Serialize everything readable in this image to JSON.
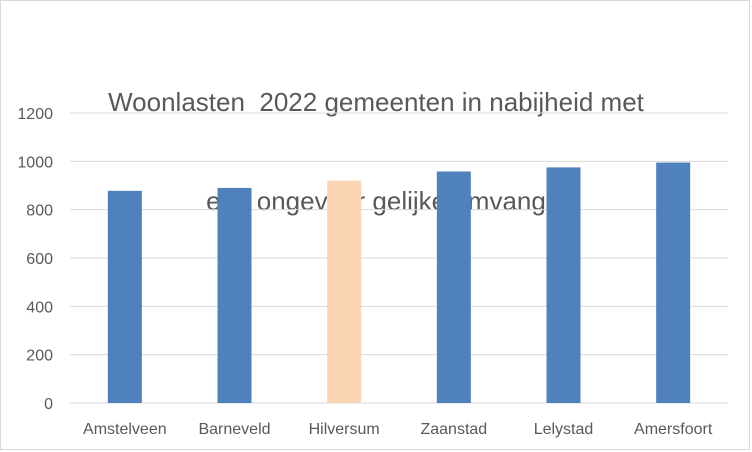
{
  "chart_data": {
    "type": "bar",
    "title_lines": [
      "Woonlasten  2022 gemeenten in nabijheid met",
      "een ongeveer gelijke omvang"
    ],
    "categories": [
      "Amstelveen",
      "Barneveld",
      "Hilversum",
      "Zaanstad",
      "Lelystad",
      "Amersfoort"
    ],
    "values": [
      878,
      890,
      920,
      958,
      975,
      995
    ],
    "bar_colors": [
      "#4f81bd",
      "#4f81bd",
      "#fcd5b4",
      "#4f81bd",
      "#4f81bd",
      "#4f81bd"
    ],
    "xlabel": "",
    "ylabel": "",
    "ylim": [
      0,
      1200
    ],
    "yticks": [
      0,
      200,
      400,
      600,
      800,
      1000,
      1200
    ],
    "grid": true,
    "legend": "none"
  }
}
